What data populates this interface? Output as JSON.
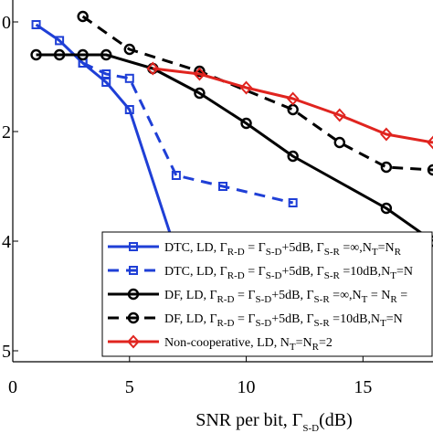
{
  "chart_data": {
    "type": "line",
    "xlabel_main": "SNR per bit, Γ",
    "xlabel_sub": "S-D",
    "xlabel_unit": "(dB)",
    "xlim": [
      0,
      18
    ],
    "xticks": [
      0,
      5,
      10,
      15
    ],
    "ylim_log10": [
      -6.2,
      0.4
    ],
    "yticks": [
      {
        "text": "0",
        "log10": 0
      },
      {
        "text": "2",
        "log10": -2
      },
      {
        "text": "4",
        "log10": -4
      },
      {
        "text": "5",
        "log10": -6
      }
    ],
    "grid": false,
    "legend_position": "bottom-right",
    "series": [
      {
        "color": "#1f3fd6",
        "dash": "solid",
        "marker": "square",
        "x": [
          1,
          2,
          3,
          4,
          5,
          8
        ],
        "log10_y": [
          -0.05,
          -0.34,
          -0.75,
          -1.1,
          -1.6,
          -5.5
        ]
      },
      {
        "color": "#1f3fd6",
        "dash": "dashed",
        "marker": "square",
        "x": [
          3,
          4,
          5,
          7,
          9,
          12
        ],
        "log10_y": [
          -0.75,
          -0.95,
          -1.03,
          -2.8,
          -3.0,
          -3.3
        ]
      },
      {
        "color": "#000000",
        "dash": "solid",
        "marker": "circle",
        "x": [
          1,
          2,
          3,
          4,
          6,
          8,
          10,
          12,
          16,
          18
        ],
        "log10_y": [
          -0.6,
          -0.6,
          -0.6,
          -0.6,
          -0.85,
          -1.3,
          -1.85,
          -2.45,
          -3.4,
          -4.0
        ]
      },
      {
        "color": "#000000",
        "dash": "dashed",
        "marker": "circle",
        "x": [
          3,
          5,
          8,
          12,
          14,
          16,
          18
        ],
        "log10_y": [
          0.1,
          -0.5,
          -0.9,
          -1.6,
          -2.2,
          -2.65,
          -2.7
        ]
      },
      {
        "color": "#e0241f",
        "dash": "solid",
        "marker": "diamond",
        "x": [
          6,
          8,
          10,
          12,
          14,
          16,
          18
        ],
        "log10_y": [
          -0.85,
          -0.95,
          -1.2,
          -1.4,
          -1.7,
          -2.05,
          -2.2
        ]
      }
    ],
    "legend": [
      {
        "parts": [
          {
            "t": "DTC, LD, Γ"
          },
          {
            "t": "R-D",
            "sub": true
          },
          {
            "t": " = Γ"
          },
          {
            "t": "S-D",
            "sub": true
          },
          {
            "t": "+5dB, Γ"
          },
          {
            "t": "S-R",
            "sub": true
          },
          {
            "t": " =∞,N"
          },
          {
            "t": "T",
            "sub": true
          },
          {
            "t": "=N"
          },
          {
            "t": "R",
            "sub": true
          }
        ]
      },
      {
        "parts": [
          {
            "t": "DTC, LD, Γ"
          },
          {
            "t": "R-D",
            "sub": true
          },
          {
            "t": " = Γ"
          },
          {
            "t": "S-D",
            "sub": true
          },
          {
            "t": "+5dB, Γ"
          },
          {
            "t": "S-R",
            "sub": true
          },
          {
            "t": " =10dB,N"
          },
          {
            "t": "T",
            "sub": true
          },
          {
            "t": "=N"
          }
        ]
      },
      {
        "parts": [
          {
            "t": "DF, LD, Γ"
          },
          {
            "t": "R-D",
            "sub": true
          },
          {
            "t": " = Γ"
          },
          {
            "t": "S-D",
            "sub": true
          },
          {
            "t": "+5dB, Γ"
          },
          {
            "t": "S-R",
            "sub": true
          },
          {
            "t": " =∞,N"
          },
          {
            "t": "T",
            "sub": true
          },
          {
            "t": " = N"
          },
          {
            "t": "R",
            "sub": true
          },
          {
            "t": " ="
          }
        ]
      },
      {
        "parts": [
          {
            "t": "DF, LD, Γ"
          },
          {
            "t": "R-D",
            "sub": true
          },
          {
            "t": " = Γ"
          },
          {
            "t": "S-D",
            "sub": true
          },
          {
            "t": "+5dB, Γ"
          },
          {
            "t": "S-R",
            "sub": true
          },
          {
            "t": " =10dB,N"
          },
          {
            "t": "T",
            "sub": true
          },
          {
            "t": "=N"
          }
        ]
      },
      {
        "parts": [
          {
            "t": "Non-cooperative, LD, N"
          },
          {
            "t": "T",
            "sub": true
          },
          {
            "t": "=N"
          },
          {
            "t": "R",
            "sub": true
          },
          {
            "t": "=2"
          }
        ]
      }
    ]
  }
}
